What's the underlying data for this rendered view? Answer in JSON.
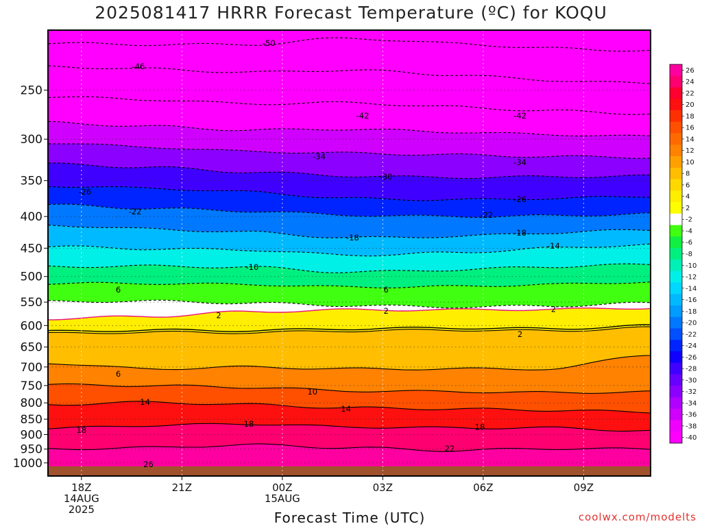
{
  "title": "2025081417 HRRR Forecast Temperature (ºC) for KOQU",
  "xlabel": "Forecast Time (UTC)",
  "credit": "coolwx.com/modelts",
  "chart_data": {
    "type": "heatmap",
    "title": "2025081417 HRRR Forecast Temperature (ºC) for KOQU",
    "xlabel": "Forecast Time (UTC)",
    "ylabel": "",
    "y_axis": {
      "quantity": "pressure (hPa)",
      "scale": "log",
      "reversed": true,
      "range": [
        1050,
        200
      ],
      "ticks": [
        250,
        300,
        350,
        400,
        450,
        500,
        550,
        600,
        650,
        700,
        750,
        800,
        850,
        900,
        950,
        1000
      ]
    },
    "x_axis": {
      "range": [
        "2025-08-14 17Z",
        "2025-08-15 11Z"
      ],
      "ticks": [
        {
          "time": "2025-08-14 18Z",
          "label": [
            "18Z",
            "14AUG",
            "2025"
          ]
        },
        {
          "time": "2025-08-14 21Z",
          "label": [
            "21Z"
          ]
        },
        {
          "time": "2025-08-15 00Z",
          "label": [
            "00Z",
            "15AUG"
          ]
        },
        {
          "time": "2025-08-15 03Z",
          "label": [
            "03Z"
          ]
        },
        {
          "time": "2025-08-15 06Z",
          "label": [
            "06Z"
          ]
        },
        {
          "time": "2025-08-15 09Z",
          "label": [
            "09Z"
          ]
        }
      ]
    },
    "grid": true,
    "colorbar": {
      "placement": "right",
      "ticks": [
        26,
        24,
        22,
        20,
        18,
        16,
        14,
        12,
        10,
        8,
        6,
        4,
        2,
        -2,
        -4,
        -6,
        -8,
        -10,
        -12,
        -14,
        -16,
        -18,
        -20,
        -22,
        -24,
        -26,
        -28,
        -30,
        -32,
        -34,
        -36,
        -38,
        -40
      ],
      "colors": [
        "#ff00a0",
        "#ff0070",
        "#ff0030",
        "#ff1010",
        "#ff3000",
        "#ff5000",
        "#ff6a00",
        "#ff8200",
        "#ffa000",
        "#ffbe00",
        "#ffd800",
        "#ffee00",
        "#ffff00",
        "#ffffff",
        "#40ff10",
        "#10f040",
        "#00f080",
        "#00f0b8",
        "#00f0e8",
        "#00d8ff",
        "#00baff",
        "#009cff",
        "#0078ff",
        "#0050ff",
        "#0024ff",
        "#1000ff",
        "#4000ff",
        "#6800ff",
        "#8c00ff",
        "#b000ff",
        "#d000ff",
        "#f000ff",
        "#ff00ff"
      ]
    },
    "ground_color": "#a0522d",
    "contours": {
      "interval_celsius": 4,
      "style_negative": "dashed",
      "style_positive": "solid",
      "zero_line_color": "#e8107c"
    },
    "contour_labels": [
      {
        "value": "-50",
        "time": "2025-08-14 23.6Z",
        "pressure": 210
      },
      {
        "value": "-46",
        "time": "2025-08-14 19.7Z",
        "pressure": 229
      },
      {
        "value": "-42",
        "time": "2025-08-15 02.4Z",
        "pressure": 275
      },
      {
        "value": "-42",
        "time": "2025-08-15 07.1Z",
        "pressure": 275
      },
      {
        "value": "-34",
        "time": "2025-08-15 01.1Z",
        "pressure": 320
      },
      {
        "value": "-34",
        "time": "2025-08-15 07.1Z",
        "pressure": 327
      },
      {
        "value": "-30",
        "time": "2025-08-15 03.1Z",
        "pressure": 345
      },
      {
        "value": "-26",
        "time": "2025-08-14 18.1Z",
        "pressure": 365
      },
      {
        "value": "-26",
        "time": "2025-08-15 07.1Z",
        "pressure": 375
      },
      {
        "value": "-22",
        "time": "2025-08-14 19.6Z",
        "pressure": 393
      },
      {
        "value": "-22",
        "time": "2025-08-15 06.1Z",
        "pressure": 398
      },
      {
        "value": "-18",
        "time": "2025-08-15 02.1Z",
        "pressure": 433
      },
      {
        "value": "-18",
        "time": "2025-08-15 07.1Z",
        "pressure": 425
      },
      {
        "value": "-14",
        "time": "2025-08-15 08.1Z",
        "pressure": 446
      },
      {
        "value": "-10",
        "time": "2025-08-14 23.1Z",
        "pressure": 483
      },
      {
        "value": "6",
        "time": "2025-08-14 19.1Z",
        "pressure": 525
      },
      {
        "value": "6",
        "time": "2025-08-15 03.1Z",
        "pressure": 525
      },
      {
        "value": "2",
        "time": "2025-08-14 22.1Z",
        "pressure": 578
      },
      {
        "value": "2",
        "time": "2025-08-15 03.1Z",
        "pressure": 568
      },
      {
        "value": "2",
        "time": "2025-08-15 08.1Z",
        "pressure": 565
      },
      {
        "value": "2",
        "time": "2025-08-15 07.1Z",
        "pressure": 620
      },
      {
        "value": "6",
        "time": "2025-08-14 19.1Z",
        "pressure": 718
      },
      {
        "value": "10",
        "time": "2025-08-15 00.9Z",
        "pressure": 768
      },
      {
        "value": "14",
        "time": "2025-08-14 19.9Z",
        "pressure": 797
      },
      {
        "value": "14",
        "time": "2025-08-15 01.9Z",
        "pressure": 818
      },
      {
        "value": "18",
        "time": "2025-08-14 18.0Z",
        "pressure": 885
      },
      {
        "value": "18",
        "time": "2025-08-14 23.0Z",
        "pressure": 865
      },
      {
        "value": "18",
        "time": "2025-08-15 05.9Z",
        "pressure": 875
      },
      {
        "value": "22",
        "time": "2025-08-15 05.0Z",
        "pressure": 948
      },
      {
        "value": "26",
        "time": "2025-08-14 20.0Z",
        "pressure": 1005
      }
    ]
  }
}
